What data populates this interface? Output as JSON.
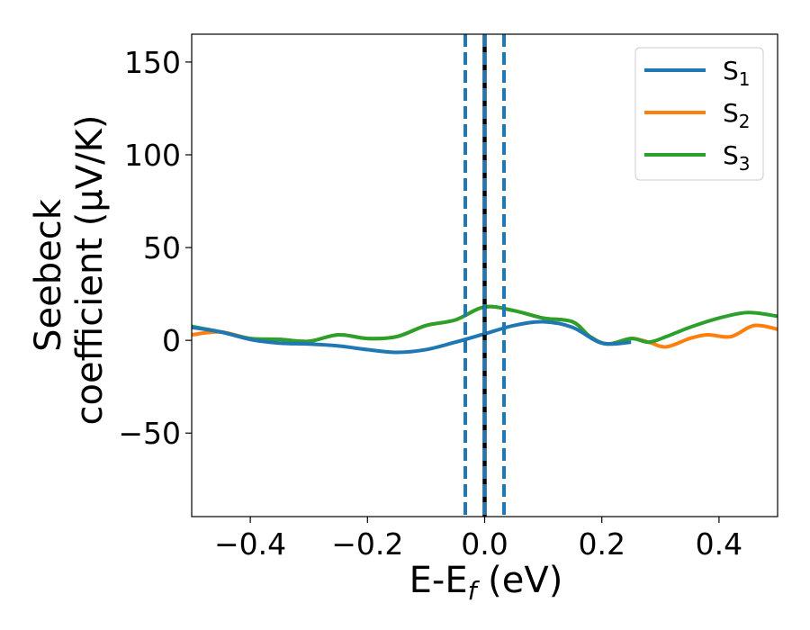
{
  "chart_data": {
    "type": "line",
    "xlabel": "E-E",
    "xlabel_sub": "f",
    "xlabel_unit": " (eV)",
    "ylabel_line1": "Seebeck",
    "ylabel_line2": "coefficient  (μV/K)",
    "xlim": [
      -0.5,
      0.5
    ],
    "ylim": [
      -95,
      165
    ],
    "xticks": [
      -0.4,
      -0.2,
      0.0,
      0.2,
      0.4
    ],
    "xtick_labels": [
      "−0.4",
      "−0.2",
      "0.0",
      "0.2",
      "0.4"
    ],
    "yticks": [
      -50,
      0,
      50,
      100,
      150
    ],
    "ytick_labels": [
      "−50",
      "0",
      "50",
      "100",
      "150"
    ],
    "grid": false,
    "legend_position": "top-right",
    "vlines": [
      {
        "x": -0.033,
        "style": "dashed",
        "color": "#1f77b4"
      },
      {
        "x": 0.0,
        "style": "solid",
        "color": "#000000"
      },
      {
        "x": 0.0,
        "style": "dashed",
        "color": "#1f77b4"
      },
      {
        "x": 0.033,
        "style": "dashed",
        "color": "#1f77b4"
      }
    ],
    "series": [
      {
        "name": "S",
        "sub": "1",
        "color": "#1f77b4",
        "x": [
          -0.5,
          -0.45,
          -0.4,
          -0.35,
          -0.3,
          -0.25,
          -0.2,
          -0.15,
          -0.1,
          -0.05,
          0.0,
          0.05,
          0.1,
          0.15,
          0.2,
          0.25
        ],
        "y": [
          7,
          4.5,
          0.5,
          -1.5,
          -2,
          -3,
          -5,
          -6.5,
          -5,
          -1,
          3.5,
          8,
          10,
          7,
          -1.5,
          -1
        ]
      },
      {
        "name": "S",
        "sub": "2",
        "color": "#ff7f0e",
        "x": [
          -0.5,
          -0.45,
          -0.4,
          -0.35,
          -0.3,
          -0.25,
          -0.2,
          -0.15,
          -0.1,
          -0.05,
          0.0,
          0.05,
          0.1,
          0.15,
          0.18,
          0.21,
          0.25,
          0.28,
          0.31,
          0.35,
          0.38,
          0.42,
          0.46,
          0.5
        ],
        "y": [
          3,
          4.5,
          1,
          0.5,
          -0.5,
          3,
          1,
          2,
          8,
          11,
          18,
          16,
          12,
          10,
          2,
          -2,
          1,
          -1,
          -3.5,
          1,
          3,
          2,
          8,
          6
        ]
      },
      {
        "name": "S",
        "sub": "3",
        "color": "#2ca02c",
        "x": [
          -0.5,
          -0.45,
          -0.4,
          -0.35,
          -0.3,
          -0.25,
          -0.2,
          -0.15,
          -0.1,
          -0.05,
          0.0,
          0.05,
          0.1,
          0.15,
          0.18,
          0.21,
          0.25,
          0.28,
          0.31,
          0.35,
          0.4,
          0.45,
          0.5
        ],
        "y": [
          7.5,
          4.5,
          1,
          0.5,
          -0.5,
          3,
          1,
          2,
          8,
          11,
          18,
          16,
          12,
          10,
          2,
          -2,
          1,
          -1,
          2,
          7,
          12,
          15,
          13
        ]
      }
    ]
  }
}
